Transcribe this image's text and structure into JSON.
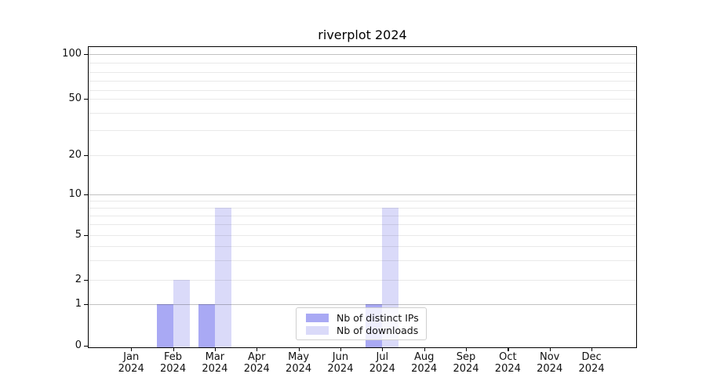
{
  "figure": {
    "title": "riverplot 2024",
    "background": "#ffffff"
  },
  "chart_data": {
    "type": "bar",
    "title": "riverplot 2024",
    "x": {
      "months": [
        "Jan",
        "Feb",
        "Mar",
        "Apr",
        "May",
        "Jun",
        "Jul",
        "Aug",
        "Sep",
        "Oct",
        "Nov",
        "Dec"
      ],
      "year": "2024"
    },
    "series": [
      {
        "name": "Nb of distinct IPs",
        "color": "#a9a9f4",
        "values": [
          0,
          1,
          1,
          0,
          0,
          0,
          1,
          0,
          0,
          0,
          0,
          0
        ]
      },
      {
        "name": "Nb of downloads",
        "color": "#dadaf9",
        "values": [
          0,
          2,
          8,
          0,
          0,
          0,
          8,
          0,
          0,
          0,
          0,
          0
        ]
      }
    ],
    "yticks": [
      100,
      50,
      20,
      10,
      5,
      2,
      1,
      0
    ],
    "ylim": [
      0,
      110
    ],
    "yscale": "log-like (linear below 1)",
    "grid": true,
    "grid_minor_values": [
      90,
      80,
      70,
      60,
      50,
      40,
      30,
      20,
      9,
      8,
      7,
      6,
      5,
      4,
      3,
      2
    ],
    "grid_major_values": [
      100,
      10,
      1
    ],
    "legend": {
      "position": "lower center",
      "labels": [
        "Nb of distinct IPs",
        "Nb of downloads"
      ]
    }
  }
}
